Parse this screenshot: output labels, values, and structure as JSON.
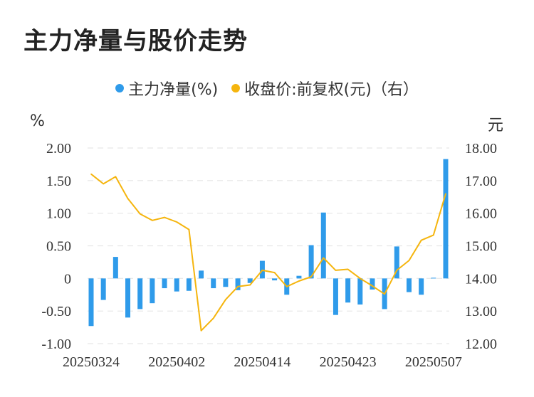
{
  "chart_data": {
    "type": "bar+line",
    "title": "主力净量与股价走势",
    "legend": [
      {
        "label": "主力净量(%)",
        "color": "#2f9bea"
      },
      {
        "label": "收盘价:前复权(元)（右）",
        "color": "#f5b50e"
      }
    ],
    "left_unit": "%",
    "right_unit": "元",
    "left_axis": {
      "ylim": [
        -1.0,
        2.0
      ],
      "ticks": [
        "2.00",
        "1.50",
        "1.00",
        "0.50",
        "0",
        "-0.50",
        "-1.00"
      ]
    },
    "right_axis": {
      "ylim": [
        12.0,
        18.0
      ],
      "ticks": [
        "18.00",
        "17.00",
        "16.00",
        "15.00",
        "14.00",
        "13.00",
        "12.00"
      ]
    },
    "x_tick_labels": [
      {
        "label": "20250324",
        "index": 0
      },
      {
        "label": "20250402",
        "index": 7
      },
      {
        "label": "20250414",
        "index": 14
      },
      {
        "label": "20250423",
        "index": 21
      },
      {
        "label": "20250507",
        "index": 28
      }
    ],
    "bars": [
      -0.73,
      -0.33,
      0.33,
      -0.6,
      -0.47,
      -0.38,
      -0.15,
      -0.2,
      -0.19,
      0.12,
      -0.15,
      -0.13,
      -0.18,
      -0.07,
      0.27,
      -0.03,
      -0.25,
      0.04,
      0.51,
      1.01,
      -0.56,
      -0.37,
      -0.4,
      -0.17,
      -0.47,
      0.49,
      -0.21,
      -0.25,
      0.01,
      1.83
    ],
    "close": [
      17.2,
      16.9,
      17.12,
      16.45,
      15.98,
      15.78,
      15.87,
      15.73,
      15.5,
      12.4,
      12.78,
      13.35,
      13.75,
      13.8,
      14.25,
      14.18,
      13.75,
      13.92,
      14.05,
      14.63,
      14.25,
      14.28,
      14.0,
      13.77,
      13.52,
      14.25,
      14.55,
      15.17,
      15.33,
      16.6
    ]
  }
}
